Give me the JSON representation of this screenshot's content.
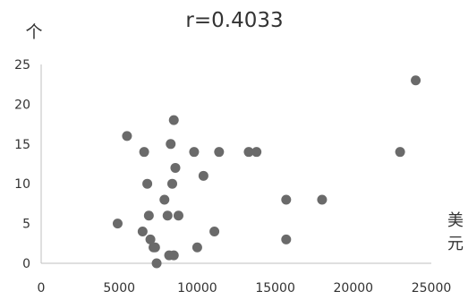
{
  "chart_data": {
    "type": "scatter",
    "title": "r=0.4033",
    "ylabel": "个",
    "xlabel_lines": [
      "美",
      "元"
    ],
    "xlim": [
      0,
      25000
    ],
    "ylim": [
      0,
      25
    ],
    "x_ticks": [
      0,
      5000,
      10000,
      15000,
      20000,
      25000
    ],
    "y_ticks": [
      0,
      5,
      10,
      15,
      20,
      25
    ],
    "grid": false,
    "colors": {
      "marker": "#6a6a6a",
      "axis": "#bfbfbf",
      "text": "#333333"
    },
    "series": [
      {
        "points": [
          {
            "x": 4900,
            "y": 5
          },
          {
            "x": 5500,
            "y": 16
          },
          {
            "x": 6500,
            "y": 4
          },
          {
            "x": 6600,
            "y": 14
          },
          {
            "x": 6800,
            "y": 10
          },
          {
            "x": 6900,
            "y": 6
          },
          {
            "x": 7000,
            "y": 3
          },
          {
            "x": 7200,
            "y": 2
          },
          {
            "x": 7300,
            "y": 2
          },
          {
            "x": 7400,
            "y": 0
          },
          {
            "x": 7900,
            "y": 8
          },
          {
            "x": 8100,
            "y": 6
          },
          {
            "x": 8200,
            "y": 1
          },
          {
            "x": 8300,
            "y": 15
          },
          {
            "x": 8400,
            "y": 10
          },
          {
            "x": 8500,
            "y": 18
          },
          {
            "x": 8500,
            "y": 1
          },
          {
            "x": 8600,
            "y": 12
          },
          {
            "x": 8800,
            "y": 6
          },
          {
            "x": 9800,
            "y": 14
          },
          {
            "x": 10000,
            "y": 2
          },
          {
            "x": 10400,
            "y": 11
          },
          {
            "x": 11100,
            "y": 4
          },
          {
            "x": 11400,
            "y": 14
          },
          {
            "x": 13300,
            "y": 14
          },
          {
            "x": 13800,
            "y": 14
          },
          {
            "x": 15700,
            "y": 8
          },
          {
            "x": 15700,
            "y": 3
          },
          {
            "x": 18000,
            "y": 8
          },
          {
            "x": 23000,
            "y": 14
          },
          {
            "x": 24000,
            "y": 23
          }
        ]
      }
    ]
  }
}
